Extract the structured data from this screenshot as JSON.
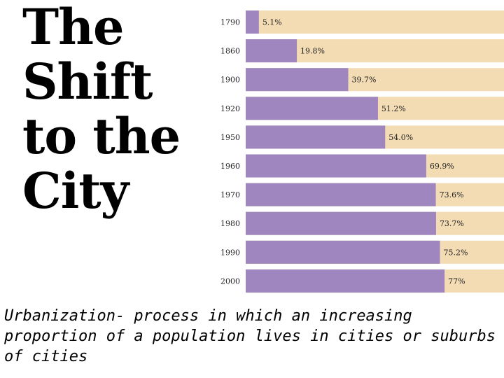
{
  "title": {
    "line1": "The",
    "line2": "Shift",
    "line3": "to the",
    "line4": "City"
  },
  "caption": "Urbanization- process in which an increasing proportion of a population lives in cities or suburbs of cities",
  "colors": {
    "bar": "#9f86bf",
    "track": "#f3dcb4",
    "text": "#222222"
  },
  "chart_data": {
    "type": "bar",
    "orientation": "horizontal",
    "stacked_with_remainder": true,
    "title": "",
    "xlabel": "",
    "ylabel": "",
    "xlim": [
      0,
      100
    ],
    "categories": [
      "1790",
      "1860",
      "1900",
      "1920",
      "1950",
      "1960",
      "1970",
      "1980",
      "1990",
      "2000"
    ],
    "values": [
      5.1,
      19.8,
      39.7,
      51.2,
      54.0,
      69.9,
      73.6,
      73.7,
      75.2,
      77
    ],
    "labels": [
      "5.1%",
      "19.8%",
      "39.7%",
      "51.2%",
      "54.0%",
      "69.9%",
      "73.6%",
      "73.7%",
      "75.2%",
      "77%"
    ]
  }
}
